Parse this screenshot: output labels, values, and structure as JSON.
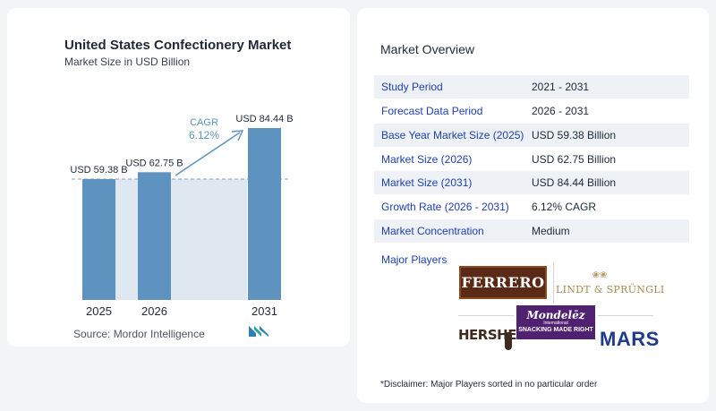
{
  "chart_data": {
    "type": "bar",
    "title": "United States Confectionery Market",
    "subtitle": "Market Size in USD Billion",
    "categories": [
      "2025",
      "2026",
      "2031"
    ],
    "values": [
      59.38,
      62.75,
      84.44
    ],
    "data_labels": [
      "USD 59.38 B",
      "USD 62.75 B",
      "USD 84.44 B"
    ],
    "ylim": [
      0,
      84.44
    ],
    "annotation": {
      "label": "CAGR",
      "value": "6.12%"
    },
    "bar_color": "#5f93bf",
    "band_color": "#dfe8f1",
    "grid": false
  },
  "source": "Source:  Mordor Intelligence",
  "overview": {
    "title": "Market Overview",
    "rows": [
      {
        "label": "Study Period",
        "value": "2021 - 2031"
      },
      {
        "label": "Forecast Data Period",
        "value": "2026 - 2031"
      },
      {
        "label": "Base Year Market Size (2025)",
        "value": "USD 59.38 Billion"
      },
      {
        "label": "Market Size (2026)",
        "value": "USD 62.75 Billion"
      },
      {
        "label": "Market Size (2031)",
        "value": "USD 84.44 Billion"
      },
      {
        "label": "Growth Rate (2026 - 2031)",
        "value": "6.12% CAGR"
      },
      {
        "label": "Market Concentration",
        "value": "Medium"
      }
    ]
  },
  "players": {
    "title": "Major Players",
    "ferrero": "FERRERO",
    "lindt": "LINDT & SPRÜNGLI",
    "hershey": "HERSHEY",
    "mondelez_name": "Mondelēz",
    "mondelez_sub": "International",
    "mondelez_tag": "SNACKING MADE RIGHT",
    "mars": "MARS"
  },
  "disclaimer": "*Disclaimer: Major Players sorted in no particular order"
}
